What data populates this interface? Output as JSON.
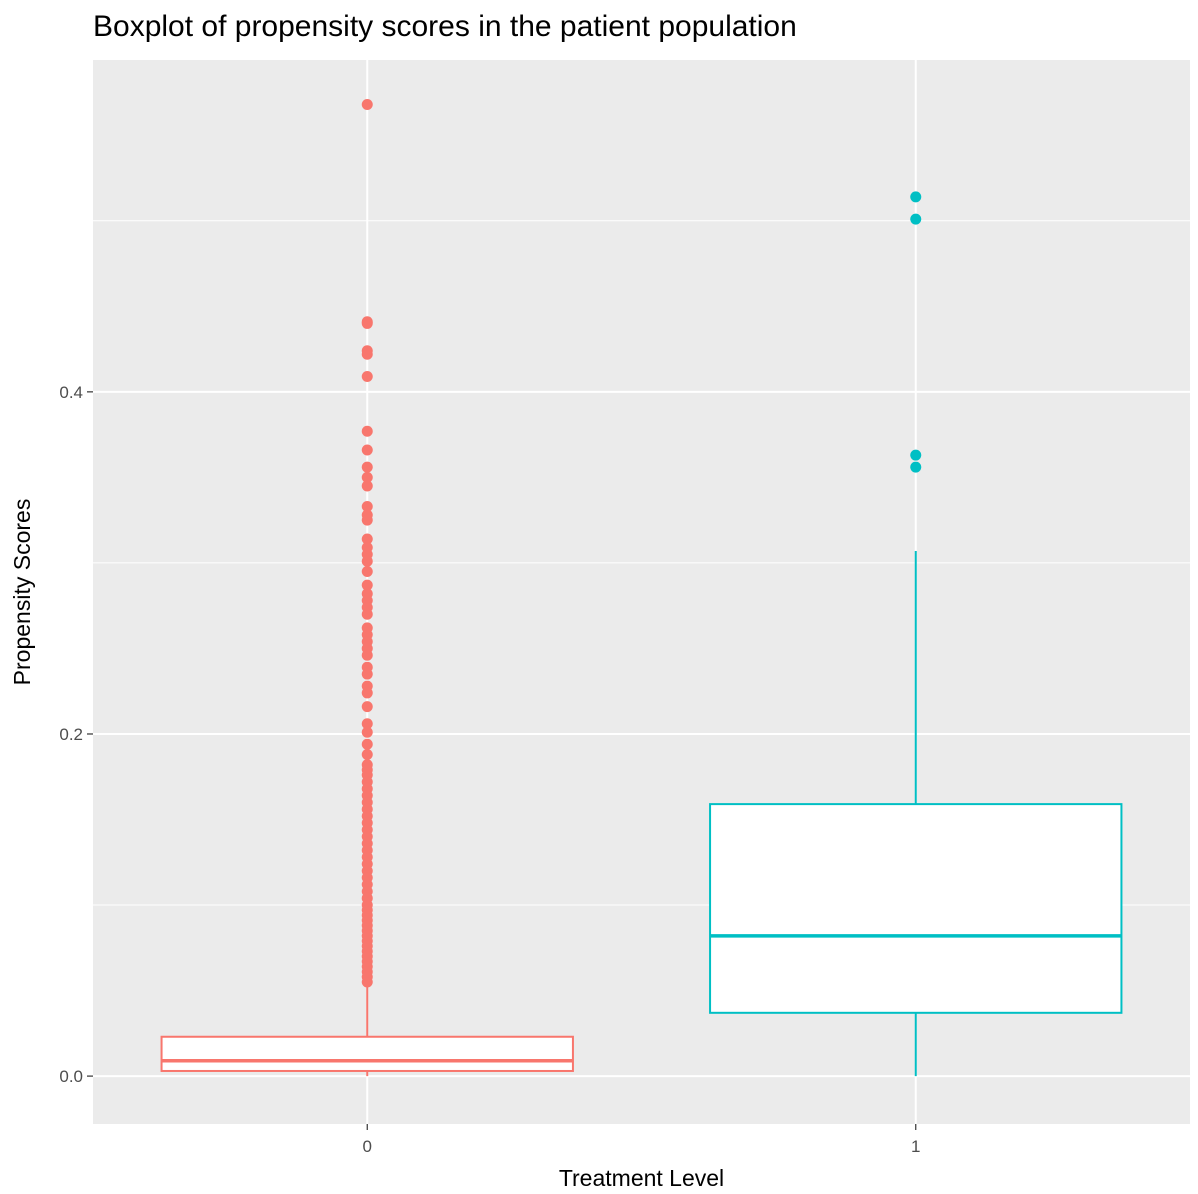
{
  "chart_data": {
    "type": "boxplot",
    "title": "Boxplot of propensity scores in the patient population",
    "xlabel": "Treatment Level",
    "ylabel": "Propensity Scores",
    "ylim": [
      -0.028,
      0.594
    ],
    "y_ticks": [
      0.0,
      0.2,
      0.4
    ],
    "y_tick_labels": [
      "0.0",
      "0.2",
      "0.4"
    ],
    "categories": [
      "0",
      "1"
    ],
    "grid": true,
    "legend": "none",
    "series": [
      {
        "category": "0",
        "color": "#F8766D",
        "box": {
          "q1": 0.003,
          "median": 0.009,
          "q3": 0.023
        },
        "whisker": {
          "low": 0.0,
          "high": 0.053
        },
        "outliers": [
          0.568,
          0.441,
          0.44,
          0.424,
          0.422,
          0.409,
          0.377,
          0.366,
          0.356,
          0.35,
          0.345,
          0.333,
          0.328,
          0.325,
          0.314,
          0.309,
          0.305,
          0.301,
          0.295,
          0.287,
          0.282,
          0.278,
          0.274,
          0.27,
          0.262,
          0.258,
          0.254,
          0.25,
          0.246,
          0.239,
          0.235,
          0.228,
          0.224,
          0.216,
          0.206,
          0.201,
          0.194,
          0.188,
          0.182,
          0.179,
          0.176,
          0.172,
          0.168,
          0.164,
          0.16,
          0.156,
          0.152,
          0.148,
          0.144,
          0.14,
          0.136,
          0.132,
          0.128,
          0.124,
          0.12,
          0.116,
          0.112,
          0.108,
          0.104,
          0.1,
          0.097,
          0.094,
          0.091,
          0.088,
          0.085,
          0.082,
          0.079,
          0.076,
          0.073,
          0.07,
          0.067,
          0.064,
          0.061,
          0.058,
          0.055
        ]
      },
      {
        "category": "1",
        "color": "#00BFC4",
        "box": {
          "q1": 0.037,
          "median": 0.082,
          "q3": 0.159
        },
        "whisker": {
          "low": 0.0,
          "high": 0.307
        },
        "outliers": [
          0.514,
          0.501,
          0.363,
          0.356
        ]
      }
    ]
  }
}
